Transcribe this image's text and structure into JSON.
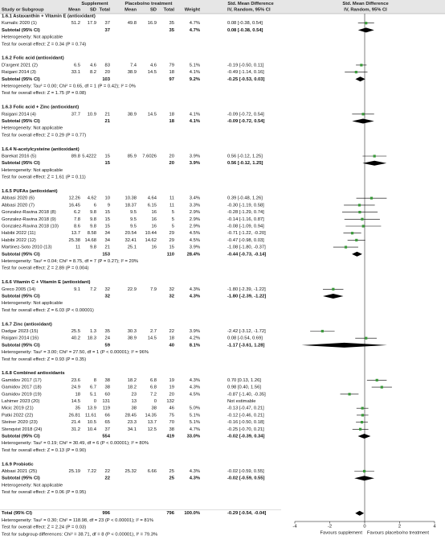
{
  "chart_data": {
    "type": "forest",
    "header": {
      "supplement": "Supplement",
      "placebo": "Placebo/no treatment",
      "smd_left": "Std. Mean Difference",
      "smd_right": "Std. Mean Difference",
      "study": "Study or Subgroup",
      "s_mean": "Mean",
      "s_sd": "SD",
      "s_total": "Total",
      "p_mean": "Mean",
      "p_sd": "SD",
      "p_total": "Total",
      "weight": "Weight",
      "method_left": "IV, Random, 95% CI",
      "method_right": "IV, Random, 95% CI"
    },
    "groups": [
      {
        "heading": "1.6.1 Astaxanthin + Vitamin E (antioxidant)",
        "studies": [
          {
            "study": "Kumalic 2020 (1)",
            "s_mean": "51.2",
            "s_sd": "17.9",
            "s_total": "37",
            "p_mean": "49.8",
            "p_sd": "16.9",
            "p_total": "35",
            "weight": "4.7%",
            "ci_text": "0.08 [-0.38, 0.54]",
            "smd": 0.08,
            "lo": -0.38,
            "hi": 0.54
          }
        ],
        "subtotal": {
          "study": "Subtotal (95% CI)",
          "s_total": "37",
          "p_total": "35",
          "weight": "4.7%",
          "ci_text": "0.08 [-0.38, 0.54]",
          "smd": 0.08,
          "lo": -0.38,
          "hi": 0.54
        },
        "heterogeneity": "Heterogeneity: Not applicable",
        "test": "Test for overall effect: Z = 0.34 (P = 0.74)"
      },
      {
        "heading": "1.6.2 Folic acid (antioxidant)",
        "studies": [
          {
            "study": "D'argent 2021 (2)",
            "s_mean": "6.5",
            "s_sd": "4.6",
            "s_total": "83",
            "p_mean": "7.4",
            "p_sd": "4.6",
            "p_total": "79",
            "weight": "5.1%",
            "ci_text": "-0.19 [-0.50, 0.11]",
            "smd": -0.19,
            "lo": -0.5,
            "hi": 0.11
          },
          {
            "study": "Raigani 2014 (3)",
            "s_mean": "33.1",
            "s_sd": "8.2",
            "s_total": "20",
            "p_mean": "38.9",
            "p_sd": "14.5",
            "p_total": "18",
            "weight": "4.1%",
            "ci_text": "-0.49 [-1.14, 0.16]",
            "smd": -0.49,
            "lo": -1.14,
            "hi": 0.16
          }
        ],
        "subtotal": {
          "study": "Subtotal (95% CI)",
          "s_total": "103",
          "p_total": "97",
          "weight": "9.2%",
          "ci_text": "-0.25 [-0.53, 0.03]",
          "smd": -0.25,
          "lo": -0.53,
          "hi": 0.03
        },
        "heterogeneity": "Heterogeneity: Tau² = 0.00; Chi² = 0.65, df = 1 (P = 0.42); I² = 0%",
        "test": "Test for overall effect: Z = 1.75 (P = 0.08)"
      },
      {
        "heading": "1.6.3 Folic acid + Zinc (antioxidant)",
        "studies": [
          {
            "study": "Raigani 2014 (4)",
            "s_mean": "37.7",
            "s_sd": "10.9",
            "s_total": "21",
            "p_mean": "38.9",
            "p_sd": "14.5",
            "p_total": "18",
            "weight": "4.1%",
            "ci_text": "-0.09 [-0.72, 0.54]",
            "smd": -0.09,
            "lo": -0.72,
            "hi": 0.54
          }
        ],
        "subtotal": {
          "study": "Subtotal (95% CI)",
          "s_total": "21",
          "p_total": "18",
          "weight": "4.1%",
          "ci_text": "-0.09 [-0.72, 0.54]",
          "smd": -0.09,
          "lo": -0.72,
          "hi": 0.54
        },
        "heterogeneity": "Heterogeneity: Not applicable",
        "test": "Test for overall effect: Z = 0.29 (P = 0.77)"
      },
      {
        "heading": "1.6.4 N-acetylcysteine (antioxidant)",
        "studies": [
          {
            "study": "Barekat 2016 (5)",
            "s_mean": "89.8",
            "s_sd": "5.4222",
            "s_total": "15",
            "p_mean": "85.9",
            "p_sd": "7.6026",
            "p_total": "20",
            "weight": "3.9%",
            "ci_text": "0.56 [-0.12, 1.25]",
            "smd": 0.56,
            "lo": -0.12,
            "hi": 1.25
          }
        ],
        "subtotal": {
          "study": "Subtotal (95% CI)",
          "s_total": "15",
          "p_total": "20",
          "weight": "3.9%",
          "ci_text": "0.56 [-0.12, 1.25]",
          "smd": 0.56,
          "lo": -0.12,
          "hi": 1.25
        },
        "heterogeneity": "Heterogeneity: Not applicable",
        "test": "Test for overall effect: Z = 1.61 (P = 0.11)"
      },
      {
        "heading": "1.6.5 PUFAs (antioxidant)",
        "studies": [
          {
            "study": "Abbasi 2020 (6)",
            "s_mean": "12.26",
            "s_sd": "4.62",
            "s_total": "10",
            "p_mean": "10.38",
            "p_sd": "4.64",
            "p_total": "11",
            "weight": "3.4%",
            "ci_text": "0.39 [-0.48, 1.26]",
            "smd": 0.39,
            "lo": -0.48,
            "hi": 1.26
          },
          {
            "study": "Abbasi 2020 (7)",
            "s_mean": "16.45",
            "s_sd": "6",
            "s_total": "9",
            "p_mean": "18.37",
            "p_sd": "6.15",
            "p_total": "11",
            "weight": "3.3%",
            "ci_text": "-0.30 [-1.19, 0.58]",
            "smd": -0.3,
            "lo": -1.19,
            "hi": 0.58
          },
          {
            "study": "Gonzalez-Ravina 2018 (8)",
            "s_mean": "6.2",
            "s_sd": "9.8",
            "s_total": "15",
            "p_mean": "9.5",
            "p_sd": "16",
            "p_total": "5",
            "weight": "2.9%",
            "ci_text": "-0.28 [-1.29, 0.74]",
            "smd": -0.28,
            "lo": -1.29,
            "hi": 0.74
          },
          {
            "study": "Gonzalez-Ravina 2018 (9)",
            "s_mean": "7.8",
            "s_sd": "9.8",
            "s_total": "15",
            "p_mean": "9.5",
            "p_sd": "16",
            "p_total": "5",
            "weight": "2.9%",
            "ci_text": "-0.14 [-1.16, 0.87]",
            "smd": -0.14,
            "lo": -1.16,
            "hi": 0.87
          },
          {
            "study": "Gonzalez-Ravina 2018 (10)",
            "s_mean": "8.6",
            "s_sd": "9.8",
            "s_total": "15",
            "p_mean": "9.5",
            "p_sd": "16",
            "p_total": "5",
            "weight": "2.9%",
            "ci_text": "-0.08 [-1.09, 0.94]",
            "smd": -0.08,
            "lo": -1.09,
            "hi": 0.94
          },
          {
            "study": "Habibi 2022 (11)",
            "s_mean": "13.7",
            "s_sd": "8.58",
            "s_total": "34",
            "p_mean": "20.54",
            "p_sd": "10.44",
            "p_total": "29",
            "weight": "4.5%",
            "ci_text": "-0.71 [-1.22, -0.20]",
            "smd": -0.71,
            "lo": -1.22,
            "hi": -0.2
          },
          {
            "study": "Habibi 2022 (12)",
            "s_mean": "25.38",
            "s_sd": "14.68",
            "s_total": "34",
            "p_mean": "32.41",
            "p_sd": "14.62",
            "p_total": "29",
            "weight": "4.5%",
            "ci_text": "-0.47 [-0.98, 0.03]",
            "smd": -0.47,
            "lo": -0.98,
            "hi": 0.03
          },
          {
            "study": "Martinez-Soto 2010 (13)",
            "s_mean": "11",
            "s_sd": "9.8",
            "s_total": "21",
            "p_mean": "25.1",
            "p_sd": "16",
            "p_total": "15",
            "weight": "3.9%",
            "ci_text": "-1.08 [-1.80, -0.37]",
            "smd": -1.08,
            "lo": -1.8,
            "hi": -0.37
          }
        ],
        "subtotal": {
          "study": "Subtotal (95% CI)",
          "s_total": "153",
          "p_total": "110",
          "weight": "28.4%",
          "ci_text": "-0.44 [-0.73, -0.14]",
          "smd": -0.44,
          "lo": -0.73,
          "hi": -0.14
        },
        "heterogeneity": "Heterogeneity: Tau² = 0.04; Chi² = 8.75, df = 7 (P = 0.27); I² = 20%",
        "test": "Test for overall effect: Z = 2.89 (P = 0.004)"
      },
      {
        "heading": "1.6.6 Vitamin C + Vitamin E (antioxidant)",
        "studies": [
          {
            "study": "Greco 2005 (14)",
            "s_mean": "9.1",
            "s_sd": "7.2",
            "s_total": "32",
            "p_mean": "22.9",
            "p_sd": "7.9",
            "p_total": "32",
            "weight": "4.3%",
            "ci_text": "-1.80 [-2.39, -1.22]",
            "smd": -1.8,
            "lo": -2.39,
            "hi": -1.22
          }
        ],
        "subtotal": {
          "study": "Subtotal (95% CI)",
          "s_total": "32",
          "p_total": "32",
          "weight": "4.3%",
          "ci_text": "-1.80 [-2.39, -1.22]",
          "smd": -1.8,
          "lo": -2.39,
          "hi": -1.22
        },
        "heterogeneity": "Heterogeneity: Not applicable",
        "test": "Test for overall effect: Z = 6.03 (P < 0.00001)"
      },
      {
        "heading": "1.6.7 Zinc (antioxidant)",
        "studies": [
          {
            "study": "Dadgar 2023 (15)",
            "s_mean": "25.5",
            "s_sd": "1.3",
            "s_total": "35",
            "p_mean": "30.3",
            "p_sd": "2.7",
            "p_total": "22",
            "weight": "3.9%",
            "ci_text": "-2.42 [-3.12, -1.72]",
            "smd": -2.42,
            "lo": -3.12,
            "hi": -1.72
          },
          {
            "study": "Raigani 2014 (16)",
            "s_mean": "40.2",
            "s_sd": "18.3",
            "s_total": "24",
            "p_mean": "38.9",
            "p_sd": "14.5",
            "p_total": "18",
            "weight": "4.2%",
            "ci_text": "0.08 [-0.54, 0.69]",
            "smd": 0.08,
            "lo": -0.54,
            "hi": 0.69
          }
        ],
        "subtotal": {
          "study": "Subtotal (95% CI)",
          "s_total": "59",
          "p_total": "40",
          "weight": "8.1%",
          "ci_text": "-1.17 [-3.61, 1.28]",
          "smd": -1.17,
          "lo": -3.61,
          "hi": 1.28
        },
        "heterogeneity": "Heterogeneity: Tau² = 3.00; Chi² = 27.50, df = 1 (P < 0.00001); I² = 96%",
        "test": "Test for overall effect: Z = 0.93 (P = 0.35)"
      },
      {
        "heading": "1.6.8 Combined antioxidants",
        "studies": [
          {
            "study": "Gamidov 2017 (17)",
            "s_mean": "23.6",
            "s_sd": "8",
            "s_total": "38",
            "p_mean": "18.2",
            "p_sd": "6.8",
            "p_total": "19",
            "weight": "4.3%",
            "ci_text": "0.70 [0.13, 1.26]",
            "smd": 0.7,
            "lo": 0.13,
            "hi": 1.26
          },
          {
            "study": "Gamidov 2017 (18)",
            "s_mean": "24.9",
            "s_sd": "6.7",
            "s_total": "38",
            "p_mean": "18.2",
            "p_sd": "6.8",
            "p_total": "19",
            "weight": "4.3%",
            "ci_text": "0.98 [0.40, 1.56]",
            "smd": 0.98,
            "lo": 0.4,
            "hi": 1.56
          },
          {
            "study": "Gamidov 2019 (19)",
            "s_mean": "18",
            "s_sd": "5.1",
            "s_total": "60",
            "p_mean": "23",
            "p_sd": "7.2",
            "p_total": "20",
            "weight": "4.5%",
            "ci_text": "-0.87 [-1.40, -0.35]",
            "smd": -0.87,
            "lo": -1.4,
            "hi": -0.35
          },
          {
            "study": "Lahimer 2023 (20)",
            "s_mean": "14.5",
            "s_sd": "0",
            "s_total": "131",
            "p_mean": "13",
            "p_sd": "0",
            "p_total": "132",
            "ci_text": "Not estimable"
          },
          {
            "study": "Micic 2019 (21)",
            "s_mean": "35",
            "s_sd": "13.9",
            "s_total": "119",
            "p_mean": "38",
            "p_sd": "38",
            "p_total": "46",
            "weight": "5.0%",
            "ci_text": "-0.13 [-0.47, 0.21]",
            "smd": -0.13,
            "lo": -0.47,
            "hi": 0.21
          },
          {
            "study": "Patki 2022 (22)",
            "s_mean": "26.81",
            "s_sd": "11.61",
            "s_total": "66",
            "p_mean": "28.45",
            "p_sd": "14.35",
            "p_total": "75",
            "weight": "5.1%",
            "ci_text": "-0.12 [-0.46, 0.21]",
            "smd": -0.12,
            "lo": -0.46,
            "hi": 0.21
          },
          {
            "study": "Steiner 2020 (23)",
            "s_mean": "21.4",
            "s_sd": "10.5",
            "s_total": "65",
            "p_mean": "23.3",
            "p_sd": "13.7",
            "p_total": "70",
            "weight": "5.1%",
            "ci_text": "-0.16 [-0.50, 0.18]",
            "smd": -0.16,
            "lo": -0.5,
            "hi": 0.18
          },
          {
            "study": "Stenqvist 2018 (24)",
            "s_mean": "31.2",
            "s_sd": "10.4",
            "s_total": "37",
            "p_mean": "34.1",
            "p_sd": "12.5",
            "p_total": "38",
            "weight": "4.7%",
            "ci_text": "-0.25 [-0.70, 0.21]",
            "smd": -0.25,
            "lo": -0.7,
            "hi": 0.21
          }
        ],
        "subtotal": {
          "study": "Subtotal (95% CI)",
          "s_total": "554",
          "p_total": "419",
          "weight": "33.0%",
          "ci_text": "-0.02 [-0.39, 0.34]",
          "smd": -0.02,
          "lo": -0.39,
          "hi": 0.34
        },
        "heterogeneity": "Heterogeneity: Tau² = 0.19; Chi² = 30.49, df = 6 (P < 0.00001); I² = 80%",
        "test": "Test for overall effect: Z = 0.13 (P = 0.90)"
      },
      {
        "heading": "1.6.9 Probiotic",
        "studies": [
          {
            "study": "Abbasi 2021 (25)",
            "s_mean": "25.19",
            "s_sd": "7.22",
            "s_total": "22",
            "p_mean": "25.32",
            "p_sd": "6.66",
            "p_total": "25",
            "weight": "4.3%",
            "ci_text": "-0.02 [-0.59, 0.55]",
            "smd": -0.02,
            "lo": -0.59,
            "hi": 0.55
          }
        ],
        "subtotal": {
          "study": "Subtotal (95% CI)",
          "s_total": "22",
          "p_total": "25",
          "weight": "4.3%",
          "ci_text": "-0.02 [-0.59, 0.55]",
          "smd": -0.02,
          "lo": -0.59,
          "hi": 0.55
        },
        "heterogeneity": "Heterogeneity: Not applicable",
        "test": "Test for overall effect: Z = 0.06 (P = 0.95)"
      }
    ],
    "total": {
      "study": "Total (95% CI)",
      "s_total": "996",
      "p_total": "796",
      "weight": "100.0%",
      "ci_text": "-0.29 [-0.54, -0.04]",
      "smd": -0.29,
      "lo": -0.54,
      "hi": -0.04
    },
    "total_notes": [
      "Heterogeneity: Tau² = 0.30; Chi² = 118.98, df = 23 (P < 0.00001); I² = 81%",
      "Test for overall effect: Z = 2.24 (P = 0.03)",
      "Test for subgroup differences: Chi² = 38.71, df = 8 (P < 0.00001), I² = 79.3%"
    ],
    "xlim": [
      -4,
      4
    ],
    "xticks": [
      -4,
      -2,
      0,
      2,
      4
    ],
    "left_label": "Favours supplement",
    "right_label": "Favours placebo/no treatment",
    "marker_color": "#3a9a3a"
  }
}
